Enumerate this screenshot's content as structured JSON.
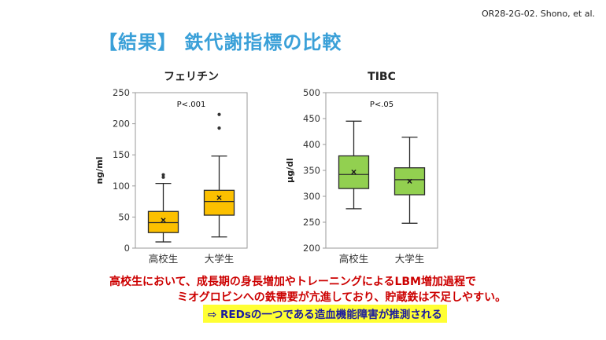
{
  "header": {
    "ref": "OR28-2G-02. Shono, et al.",
    "title": "【結果】 鉄代謝指標の比較"
  },
  "colors": {
    "title": "#3aa0d8",
    "ferritin_box": "#fcc000",
    "tibc_box": "#92d050",
    "conclusion": "#cc0000",
    "highlight": "#ffff33",
    "highlight_text": "#1a1aa0"
  },
  "chart_data": [
    {
      "type": "box",
      "title": "フェリチン",
      "annotation": "P<.001",
      "ylabel": "ng/ml",
      "ylim": [
        0,
        250
      ],
      "yticks": [
        0,
        50,
        100,
        150,
        200,
        250
      ],
      "categories": [
        "高校生",
        "大学生"
      ],
      "boxes": [
        {
          "min": 10,
          "q1": 25,
          "median": 41,
          "q3": 59,
          "max": 104,
          "mean": 45,
          "outliers": [
            114,
            118
          ]
        },
        {
          "min": 18,
          "q1": 53,
          "median": 75,
          "q3": 93,
          "max": 148,
          "mean": 81,
          "outliers": [
            193,
            215
          ]
        }
      ]
    },
    {
      "type": "box",
      "title": "TIBC",
      "annotation": "P<.05",
      "ylabel": "μg/dl",
      "ylim": [
        200,
        500
      ],
      "yticks": [
        200,
        250,
        300,
        350,
        400,
        450,
        500
      ],
      "categories": [
        "高校生",
        "大学生"
      ],
      "boxes": [
        {
          "min": 276,
          "q1": 315,
          "median": 342,
          "q3": 378,
          "max": 445,
          "mean": 347,
          "outliers": []
        },
        {
          "min": 248,
          "q1": 303,
          "median": 332,
          "q3": 355,
          "max": 414,
          "mean": 329,
          "outliers": []
        }
      ]
    }
  ],
  "conclusion": {
    "line1": "高校生において、成長期の身長増加やトレーニングによるLBM増加過程で",
    "line2": "ミオグロビンへの鉄需要が亢進しており、貯蔵鉄は不足しやすい。",
    "line3": "⇨  REDsの一つである造血機能障害が推測される"
  }
}
